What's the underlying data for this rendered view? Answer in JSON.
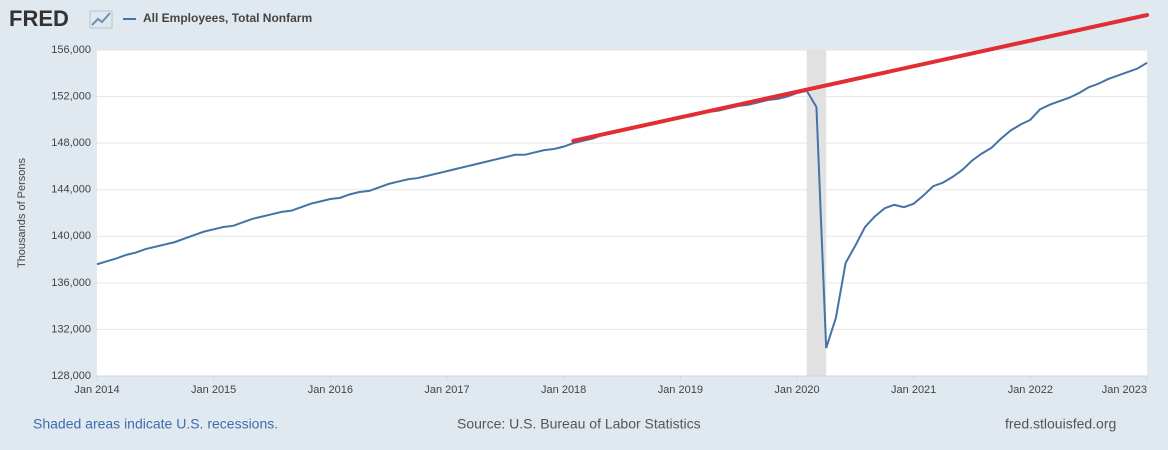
{
  "chart_data": {
    "type": "line",
    "logo": "FRED",
    "y_label": "Thousands of Persons",
    "footer_left": "Shaded areas indicate U.S. recessions.",
    "footer_source": "Source: U.S. Bureau of Labor Statistics",
    "footer_right": "fred.stlouisfed.org",
    "x": [
      "2014-01",
      "2014-02",
      "2014-03",
      "2014-04",
      "2014-05",
      "2014-06",
      "2014-07",
      "2014-08",
      "2014-09",
      "2014-10",
      "2014-11",
      "2014-12",
      "2015-01",
      "2015-02",
      "2015-03",
      "2015-04",
      "2015-05",
      "2015-06",
      "2015-07",
      "2015-08",
      "2015-09",
      "2015-10",
      "2015-11",
      "2015-12",
      "2016-01",
      "2016-02",
      "2016-03",
      "2016-04",
      "2016-05",
      "2016-06",
      "2016-07",
      "2016-08",
      "2016-09",
      "2016-10",
      "2016-11",
      "2016-12",
      "2017-01",
      "2017-02",
      "2017-03",
      "2017-04",
      "2017-05",
      "2017-06",
      "2017-07",
      "2017-08",
      "2017-09",
      "2017-10",
      "2017-11",
      "2017-12",
      "2018-01",
      "2018-02",
      "2018-03",
      "2018-04",
      "2018-05",
      "2018-06",
      "2018-07",
      "2018-08",
      "2018-09",
      "2018-10",
      "2018-11",
      "2018-12",
      "2019-01",
      "2019-02",
      "2019-03",
      "2019-04",
      "2019-05",
      "2019-06",
      "2019-07",
      "2019-08",
      "2019-09",
      "2019-10",
      "2019-11",
      "2019-12",
      "2020-01",
      "2020-02",
      "2020-03",
      "2020-04",
      "2020-05",
      "2020-06",
      "2020-07",
      "2020-08",
      "2020-09",
      "2020-10",
      "2020-11",
      "2020-12",
      "2021-01",
      "2021-02",
      "2021-03",
      "2021-04",
      "2021-05",
      "2021-06",
      "2021-07",
      "2021-08",
      "2021-09",
      "2021-10",
      "2021-11",
      "2021-12",
      "2022-01",
      "2022-02",
      "2022-03",
      "2022-04",
      "2022-05",
      "2022-06",
      "2022-07",
      "2022-08",
      "2022-09",
      "2022-10",
      "2022-11",
      "2022-12",
      "2023-01"
    ],
    "series": [
      {
        "name": "All Employees, Total Nonfarm",
        "color": "#4572a7",
        "values": [
          137600,
          137850,
          138100,
          138400,
          138600,
          138900,
          139100,
          139300,
          139500,
          139800,
          140100,
          140400,
          140600,
          140800,
          140900,
          141200,
          141500,
          141700,
          141900,
          142100,
          142200,
          142500,
          142800,
          143000,
          143200,
          143300,
          143600,
          143800,
          143900,
          144200,
          144500,
          144700,
          144900,
          145000,
          145200,
          145400,
          145600,
          145800,
          146000,
          146200,
          146400,
          146600,
          146800,
          147000,
          147000,
          147200,
          147400,
          147500,
          147700,
          148000,
          148200,
          148400,
          148700,
          148900,
          149100,
          149300,
          149400,
          149600,
          149800,
          150000,
          150200,
          150300,
          150500,
          150700,
          150800,
          151000,
          151200,
          151300,
          151500,
          151700,
          151800,
          152000,
          152300,
          152500,
          151100,
          130400,
          133000,
          137700,
          139200,
          140800,
          141700,
          142400,
          142700,
          142500,
          142800,
          143500,
          144300,
          144600,
          145100,
          145700,
          146500,
          147100,
          147600,
          148400,
          149100,
          149600,
          150000,
          150900,
          151300,
          151600,
          151900,
          152300,
          152800,
          153100,
          153500,
          153800,
          154100,
          154400,
          154900
        ]
      }
    ],
    "trend_line": {
      "color": "#e32d34",
      "x": [
        "2018-02",
        "2023-01"
      ],
      "values": [
        148200,
        159000
      ]
    },
    "recessions": [
      [
        "2020-02",
        "2020-04"
      ]
    ],
    "recession_color": "#e1e1e1",
    "xlim": [
      "2014-01",
      "2023-01"
    ],
    "xticks": [
      {
        "value": "2014-01",
        "label": "Jan 2014"
      },
      {
        "value": "2015-01",
        "label": "Jan 2015"
      },
      {
        "value": "2016-01",
        "label": "Jan 2016"
      },
      {
        "value": "2017-01",
        "label": "Jan 2017"
      },
      {
        "value": "2018-01",
        "label": "Jan 2018"
      },
      {
        "value": "2019-01",
        "label": "Jan 2019"
      },
      {
        "value": "2020-01",
        "label": "Jan 2020"
      },
      {
        "value": "2021-01",
        "label": "Jan 2021"
      },
      {
        "value": "2022-01",
        "label": "Jan 2022"
      },
      {
        "value": "2023-01",
        "label": "Jan 2023"
      }
    ],
    "ylim": [
      128000,
      156000
    ],
    "yticks": [
      {
        "value": 128000,
        "label": "128,000"
      },
      {
        "value": 132000,
        "label": "132,000"
      },
      {
        "value": 136000,
        "label": "136,000"
      },
      {
        "value": 140000,
        "label": "140,000"
      },
      {
        "value": 144000,
        "label": "144,000"
      },
      {
        "value": 148000,
        "label": "148,000"
      },
      {
        "value": 152000,
        "label": "152,000"
      },
      {
        "value": 156000,
        "label": "156,000"
      }
    ],
    "grid": true
  }
}
